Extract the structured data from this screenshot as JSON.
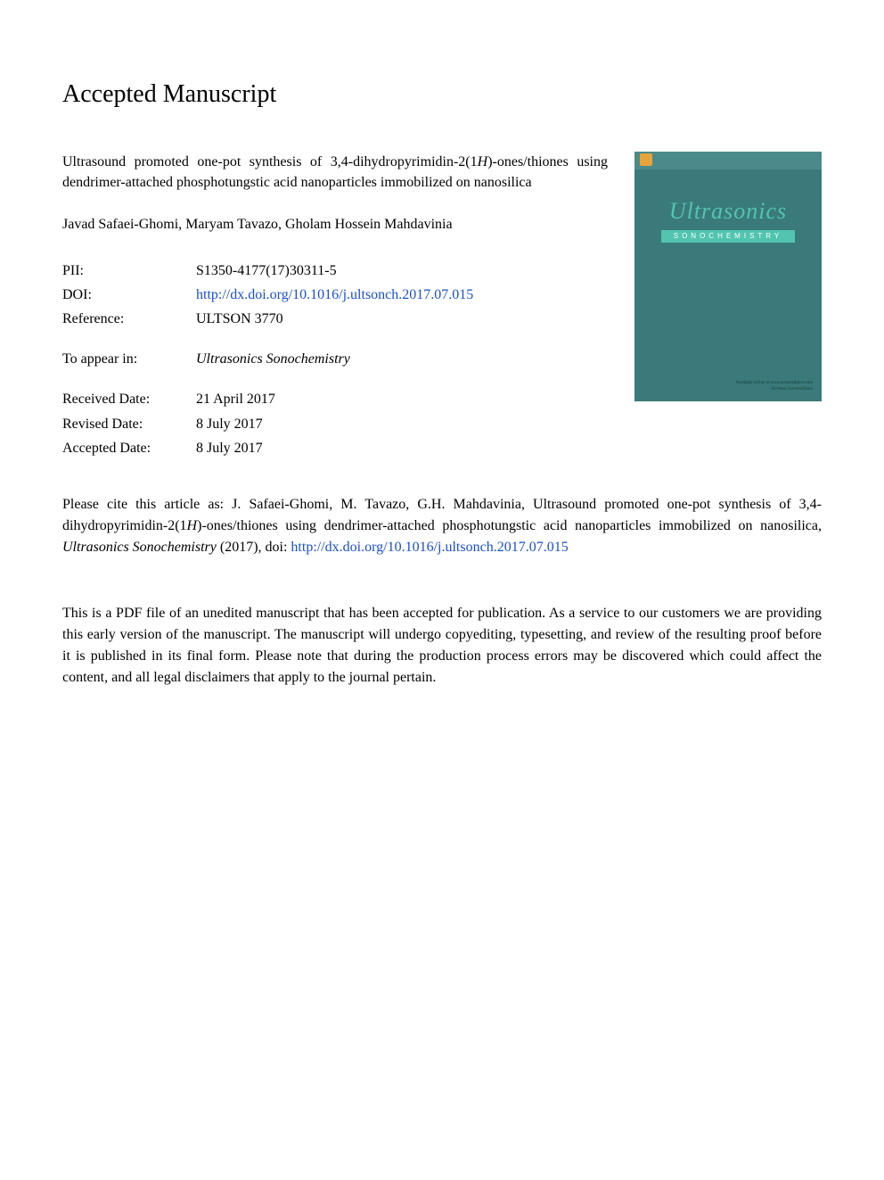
{
  "heading": "Accepted Manuscript",
  "title_line1": "Ultrasound promoted one-pot synthesis of 3,4-dihydropyrimidin-2(1",
  "title_ital1": "H",
  "title_line2": ")-ones/thiones using dendrimer-attached phosphotungstic acid nanoparticles immobilized on nanosilica",
  "authors": "Javad Safaei-Ghomi, Maryam Tavazo, Gholam Hossein Mahdavinia",
  "meta": {
    "pii_label": "PII:",
    "pii_value": "S1350-4177(17)30311-5",
    "doi_label": "DOI:",
    "doi_value": "http://dx.doi.org/10.1016/j.ultsonch.2017.07.015",
    "ref_label": "Reference:",
    "ref_value": "ULTSON 3770",
    "appear_label": "To appear in:",
    "appear_value": "Ultrasonics Sonochemistry",
    "recv_label": "Received Date:",
    "recv_value": "21 April 2017",
    "rev_label": "Revised Date:",
    "rev_value": "8 July 2017",
    "acc_label": "Accepted Date:",
    "acc_value": "8 July 2017"
  },
  "cover": {
    "title": "Ultrasonics",
    "subtitle": "SONOCHEMISTRY",
    "footer1": "Available online at www.sciencedirect.com",
    "footer2": "SciVerse ScienceDirect"
  },
  "citation": {
    "prefix": "Please cite this article as: J. Safaei-Ghomi, M. Tavazo, G.H. Mahdavinia, Ultrasound promoted one-pot synthesis of 3,4-dihydropyrimidin-2(1",
    "ital1": "H",
    "mid": ")-ones/thiones using dendrimer-attached phosphotungstic acid nanoparticles immobilized on nanosilica, ",
    "journal": "Ultrasonics Sonochemistry",
    "year": " (2017), doi: ",
    "link": "http://dx.doi.org/10.1016/j.ultsonch.2017.07.015"
  },
  "disclaimer": "This is a PDF file of an unedited manuscript that has been accepted for publication. As a service to our customers we are providing this early version of the manuscript. The manuscript will undergo copyediting, typesetting, and review of the resulting proof before it is published in its final form. Please note that during the production process errors may be discovered which could affect the content, and all legal disclaimers that apply to the journal pertain.",
  "colors": {
    "link": "#1a4fcf",
    "cover_bg": "#3a7a7a",
    "cover_accent": "#52c4b0"
  }
}
